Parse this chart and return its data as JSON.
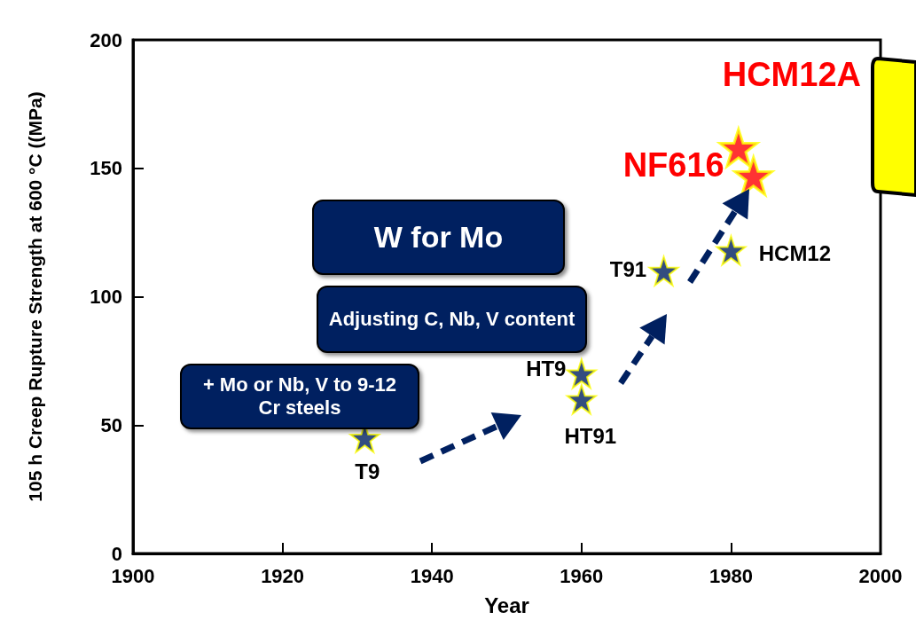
{
  "chart_data": {
    "type": "scatter",
    "xlabel": "Year",
    "ylabel": "105 h Creep Rupture Strength at 600 °C ((MPa)",
    "xlim": [
      1900,
      2000
    ],
    "xticks": [
      1900,
      1920,
      1940,
      1960,
      1980,
      2000
    ],
    "ylim": [
      0,
      200
    ],
    "yticks": [
      0,
      50,
      100,
      150,
      200
    ],
    "marker": "star",
    "grid": false,
    "series": [
      {
        "color": "#002060",
        "x": [
          1931,
          1960,
          1960,
          1971,
          1980
        ],
        "values": [
          45,
          70,
          60,
          110,
          118
        ]
      },
      {
        "color": "#ff0000",
        "x": [
          1981,
          1983
        ],
        "values": [
          158,
          147
        ]
      }
    ],
    "annotations": [
      "W for Mo",
      "Adjusting  C, Nb, V content",
      "+ Mo or Nb, V to 9-12 Cr steels",
      {
        "text": "T9",
        "x": 1931,
        "y": 45
      },
      {
        "text": "HT9",
        "x": 1960,
        "y": 70
      },
      {
        "text": "HT91",
        "x": 1960,
        "y": 60
      },
      {
        "text": "T91",
        "x": 1971,
        "y": 110
      },
      {
        "text": "HCM12",
        "x": 1980,
        "y": 118
      },
      {
        "text": "HCM12A",
        "x": 1981,
        "y": 158
      },
      {
        "text": "NF616",
        "x": 1983,
        "y": 147
      }
    ]
  }
}
